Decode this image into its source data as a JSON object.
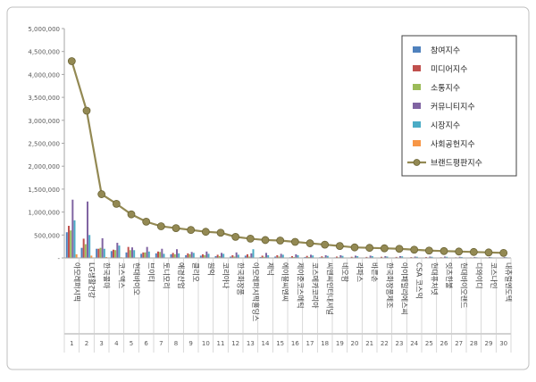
{
  "chart_data": {
    "type": "bar",
    "title": "",
    "xlabel": "",
    "ylabel": "",
    "ylim": [
      0,
      5000000
    ],
    "y_ticks": [
      "5,000,000",
      "4,500,000",
      "4,000,000",
      "3,500,000",
      "3,000,000",
      "2,500,000",
      "2,000,000",
      "1,500,000",
      "1,000,000",
      "500,000",
      "-"
    ],
    "legend_position": "top-right",
    "grid": false,
    "ranks": [
      "1",
      "2",
      "3",
      "4",
      "5",
      "6",
      "7",
      "8",
      "9",
      "10",
      "11",
      "12",
      "13",
      "14",
      "15",
      "16",
      "17",
      "18",
      "19",
      "20",
      "21",
      "22",
      "23",
      "24",
      "25",
      "26",
      "27",
      "28",
      "29",
      "30"
    ],
    "categories": [
      "아모레퍼시픽",
      "LG생활건강",
      "한국콜마",
      "코스맥스",
      "현대바이오",
      "브이티",
      "토니모리",
      "애경산업",
      "클리오",
      "원익",
      "코리아나",
      "한국화장품",
      "아모레퍼시픽홀딩스",
      "제닉",
      "에이블씨엔씨",
      "제이준코스메틱",
      "코스메카코리아",
      "씨앤씨인터내셔널",
      "네오팜",
      "라파스",
      "바른손",
      "한국화장품제조",
      "아이패밀리에스씨",
      "CSA 코스믹",
      "현대퓨처넷",
      "잇츠한불",
      "현대바이오랜드",
      "디와이디",
      "코스나인",
      "내츄럴엔도텍"
    ],
    "series": [
      {
        "name": "참여지수",
        "kind": "bar",
        "color": "#4f81bd",
        "values": [
          560000,
          220000,
          200000,
          150000,
          120000,
          90000,
          100000,
          80000,
          60000,
          50000,
          40000,
          30000,
          50000,
          20000,
          30000,
          15000,
          20000,
          15000,
          12000,
          10000,
          10000,
          10000,
          10000,
          8000,
          8000,
          7000,
          6000,
          5000,
          5000,
          5000
        ]
      },
      {
        "name": "미디어지수",
        "kind": "bar",
        "color": "#c0504d",
        "values": [
          700000,
          420000,
          200000,
          180000,
          240000,
          120000,
          140000,
          110000,
          100000,
          80000,
          70000,
          60000,
          80000,
          50000,
          60000,
          40000,
          45000,
          35000,
          30000,
          25000,
          22000,
          25000,
          22000,
          18000,
          20000,
          15000,
          14000,
          12000,
          12000,
          10000
        ]
      },
      {
        "name": "소통지수",
        "kind": "bar",
        "color": "#9bbb59",
        "values": [
          600000,
          300000,
          220000,
          170000,
          170000,
          120000,
          130000,
          80000,
          80000,
          60000,
          40000,
          30000,
          30000,
          25000,
          30000,
          20000,
          20000,
          15000,
          15000,
          12000,
          10000,
          10000,
          10000,
          8000,
          8000,
          7000,
          6000,
          5000,
          5000,
          5000
        ]
      },
      {
        "name": "커뮤니티지수",
        "kind": "bar",
        "color": "#8064a2",
        "values": [
          1270000,
          1230000,
          430000,
          330000,
          230000,
          240000,
          200000,
          190000,
          130000,
          140000,
          110000,
          120000,
          100000,
          110000,
          90000,
          80000,
          70000,
          60000,
          60000,
          50000,
          50000,
          40000,
          40000,
          30000,
          30000,
          30000,
          25000,
          20000,
          20000,
          20000
        ]
      },
      {
        "name": "시장지수",
        "kind": "bar",
        "color": "#4bacc6",
        "values": [
          820000,
          500000,
          200000,
          270000,
          170000,
          140000,
          90000,
          100000,
          110000,
          90000,
          90000,
          70000,
          190000,
          60000,
          70000,
          60000,
          55000,
          45000,
          45000,
          40000,
          40000,
          30000,
          35000,
          25000,
          25000,
          25000,
          20000,
          15000,
          15000,
          15000
        ]
      },
      {
        "name": "사회공헌지수",
        "kind": "bar",
        "color": "#f79646",
        "values": [
          80000,
          50000,
          20000,
          15000,
          10000,
          10000,
          8000,
          8000,
          6000,
          5000,
          5000,
          5000,
          6000,
          4000,
          4000,
          3000,
          3000,
          3000,
          3000,
          2000,
          2000,
          2000,
          2000,
          2000,
          2000,
          2000,
          2000,
          2000,
          2000,
          2000
        ]
      },
      {
        "name": "브랜드평판지수",
        "kind": "line",
        "color": "#938953",
        "values": [
          4290000,
          3210000,
          1390000,
          1180000,
          950000,
          790000,
          690000,
          650000,
          610000,
          570000,
          550000,
          460000,
          420000,
          390000,
          380000,
          350000,
          320000,
          290000,
          260000,
          230000,
          220000,
          210000,
          200000,
          180000,
          160000,
          150000,
          140000,
          130000,
          120000,
          110000
        ]
      }
    ]
  }
}
